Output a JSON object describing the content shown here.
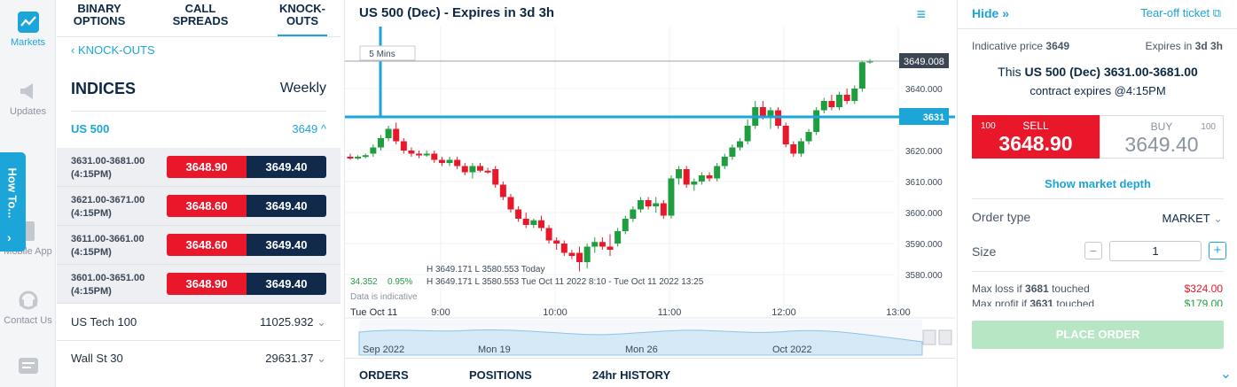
{
  "rail": {
    "items": [
      {
        "label": "Markets",
        "icon": "chart-line-icon",
        "active": true
      },
      {
        "label": "Updates",
        "icon": "megaphone-icon"
      },
      {
        "label": "Mobile App",
        "icon": "mobile-icon"
      },
      {
        "label": "Contact Us",
        "icon": "headset-icon"
      },
      {
        "label": "",
        "icon": "feedback-icon"
      }
    ],
    "howto": "How To...",
    "howto_arrow": "›"
  },
  "left": {
    "tabs": [
      "BINARY\nOPTIONS",
      "CALL\nSPREADS",
      "KNOCK-\nOUTS"
    ],
    "back": "‹ KNOCK-OUTS",
    "section_title": "INDICES",
    "section_period": "Weekly",
    "us500": {
      "name": "US 500",
      "value": "3649 ^"
    },
    "rows": [
      {
        "strike": "3631.00-3681.00",
        "time": "(4:15PM)",
        "sell": "3648.90",
        "buy": "3649.40"
      },
      {
        "strike": "3621.00-3671.00",
        "time": "(4:15PM)",
        "sell": "3648.60",
        "buy": "3649.40"
      },
      {
        "strike": "3611.00-3661.00",
        "time": "(4:15PM)",
        "sell": "3648.60",
        "buy": "3649.40"
      },
      {
        "strike": "3601.00-3651.00",
        "time": "(4:15PM)",
        "sell": "3648.90",
        "buy": "3649.40"
      }
    ],
    "markets": [
      {
        "name": "US Tech 100",
        "value": "11025.932"
      },
      {
        "name": "Wall St 30",
        "value": "29631.37"
      }
    ]
  },
  "chart": {
    "title": "US 500 (Dec) - Expires in 3d 3h",
    "menu": "≡",
    "interval": "5 Mins",
    "last_price_tag": "3649.008",
    "strike_tag": "3631",
    "ohlc_line1": "H 3649.171   L 3580.553   Today",
    "ohlc_line2": "H 3649.171   L 3580.553   Tue Oct 11 2022 8:10 - Tue Oct 11 2022 13:25",
    "change": "34.352",
    "change_pct": "0.95%",
    "indicative": "Data is indicative",
    "date_label": "Tue Oct 11",
    "nav_labels": [
      "Sep 2022",
      "Mon 19",
      "Mon 26",
      "Oct 2022"
    ],
    "colors": {
      "up": "#1f9e3f",
      "down": "#e8182a",
      "strike": "#1ba5d8"
    }
  },
  "chart_data": {
    "type": "candlestick",
    "yticks": [
      3640.0,
      3630.0,
      3620.0,
      3610.0,
      3600.0,
      3590.0,
      3580.0
    ],
    "ytick_labels": [
      "3640.000",
      "3620.000",
      "3610.000",
      "3600.000",
      "3590.000",
      "3580.000"
    ],
    "xticks": [
      "9:00",
      "10:00",
      "11:00",
      "12:00",
      "13:00"
    ],
    "strike_level": 3631,
    "last_price": 3649.008,
    "candles": [
      [
        3618,
        3619,
        3617,
        3617.5
      ],
      [
        3617.5,
        3618.5,
        3617,
        3618
      ],
      [
        3618,
        3619,
        3617.5,
        3618.5
      ],
      [
        3619,
        3622,
        3618,
        3621
      ],
      [
        3621,
        3625,
        3620,
        3624
      ],
      [
        3624,
        3628,
        3623,
        3627
      ],
      [
        3627,
        3629,
        3622,
        3623
      ],
      [
        3623,
        3624,
        3619,
        3620
      ],
      [
        3620,
        3621,
        3618,
        3619
      ],
      [
        3619,
        3620,
        3617.5,
        3618.5
      ],
      [
        3619,
        3620,
        3618,
        3619
      ],
      [
        3619,
        3620,
        3616,
        3617
      ],
      [
        3617,
        3618,
        3615,
        3616
      ],
      [
        3616,
        3618,
        3615,
        3617
      ],
      [
        3617,
        3618,
        3614,
        3615
      ],
      [
        3615,
        3616,
        3612,
        3613
      ],
      [
        3613,
        3616,
        3611,
        3615
      ],
      [
        3615,
        3616,
        3613,
        3613.5
      ],
      [
        3613.5,
        3614.5,
        3612.5,
        3613
      ],
      [
        3614,
        3615,
        3608,
        3609
      ],
      [
        3609,
        3610,
        3604,
        3605
      ],
      [
        3605,
        3606,
        3600,
        3601
      ],
      [
        3601,
        3602,
        3597,
        3598
      ],
      [
        3598,
        3600,
        3595,
        3596
      ],
      [
        3596,
        3598,
        3595,
        3597.5
      ],
      [
        3597.5,
        3599,
        3594,
        3595
      ],
      [
        3595,
        3596,
        3590,
        3591
      ],
      [
        3591,
        3592,
        3588,
        3590
      ],
      [
        3590,
        3591,
        3586,
        3587
      ],
      [
        3587,
        3588,
        3585,
        3586
      ],
      [
        3587,
        3589,
        3581,
        3584
      ],
      [
        3584,
        3590,
        3582,
        3589
      ],
      [
        3589,
        3592,
        3587,
        3590.5
      ],
      [
        3590.5,
        3592,
        3588,
        3589
      ],
      [
        3589,
        3593,
        3586,
        3588
      ],
      [
        3590,
        3595,
        3589,
        3594
      ],
      [
        3594,
        3599,
        3593,
        3598
      ],
      [
        3598,
        3602,
        3597,
        3601
      ],
      [
        3601,
        3605,
        3600,
        3604
      ],
      [
        3604,
        3605,
        3601,
        3602
      ],
      [
        3602,
        3605,
        3600,
        3603
      ],
      [
        3603,
        3604,
        3598,
        3599
      ],
      [
        3599,
        3612,
        3598,
        3611
      ],
      [
        3611,
        3615,
        3609,
        3614
      ],
      [
        3614,
        3615,
        3608,
        3609
      ],
      [
        3609,
        3611,
        3607,
        3610
      ],
      [
        3610,
        3613,
        3609,
        3612
      ],
      [
        3612,
        3613,
        3610,
        3611
      ],
      [
        3611,
        3616,
        3610,
        3615
      ],
      [
        3615,
        3619,
        3614,
        3618
      ],
      [
        3618,
        3622,
        3617,
        3621
      ],
      [
        3621,
        3624,
        3620,
        3623
      ],
      [
        3623,
        3630,
        3622,
        3628
      ],
      [
        3628,
        3636,
        3627,
        3634
      ],
      [
        3634,
        3636,
        3630,
        3631
      ],
      [
        3631,
        3634,
        3627,
        3633
      ],
      [
        3633,
        3634,
        3627,
        3628
      ],
      [
        3628,
        3629,
        3621,
        3622
      ],
      [
        3622,
        3623,
        3618,
        3619
      ],
      [
        3619,
        3624,
        3618,
        3623
      ],
      [
        3623,
        3627,
        3622,
        3626
      ],
      [
        3626,
        3634,
        3625,
        3633
      ],
      [
        3633,
        3637,
        3632,
        3636
      ],
      [
        3636,
        3638,
        3633,
        3634
      ],
      [
        3634,
        3639,
        3633,
        3638
      ],
      [
        3638,
        3640,
        3635,
        3636
      ],
      [
        3636,
        3641,
        3635,
        3640
      ],
      [
        3640,
        3649,
        3639,
        3648.5
      ],
      [
        3648.5,
        3649.5,
        3648,
        3649
      ]
    ]
  },
  "bottom_tabs": [
    "ORDERS",
    "POSITIONS",
    "24hr HISTORY"
  ],
  "ticket": {
    "hide": "Hide",
    "tear": "Tear-off ticket",
    "indicative_label": "Indicative price",
    "indicative_value": "3649",
    "expires_label": "Expires in",
    "expires_value": "3d 3h",
    "contract_prefix": "This",
    "contract_name": "US 500 (Dec) 3631.00-3681.00",
    "contract_expiry": "contract expires @4:15PM",
    "sell_qty": "100",
    "sell_label": "SELL",
    "sell_price": "3648.90",
    "buy_label": "BUY",
    "buy_qty": "100",
    "buy_price": "3649.40",
    "depth": "Show market depth",
    "order_type_label": "Order type",
    "order_type_value": "MARKET",
    "size_label": "Size",
    "size_value": "1",
    "max_loss_label": "Max loss if",
    "max_loss_level": "3681",
    "max_loss_suffix": "touched",
    "max_loss_value": "$324.00",
    "max_profit_label": "Max profit if",
    "max_profit_level": "3631",
    "max_profit_suffix": "touched",
    "max_profit_value": "$179.00",
    "place_order": "PLACE ORDER"
  }
}
